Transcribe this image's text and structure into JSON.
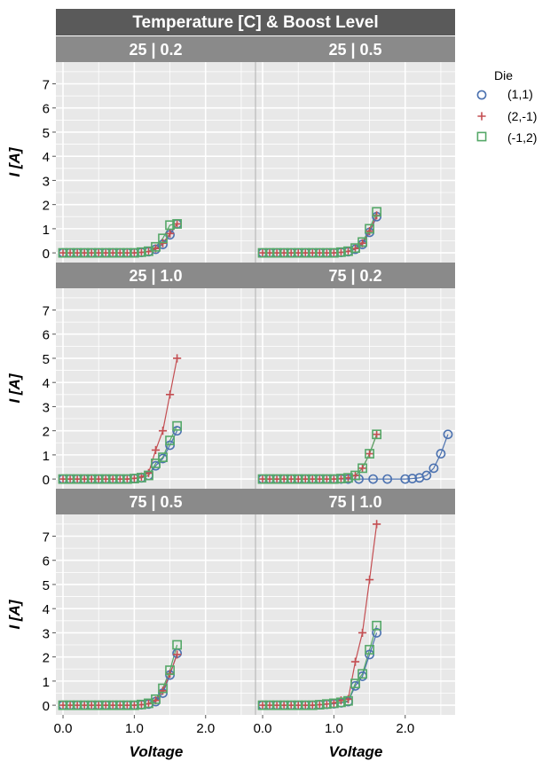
{
  "chart_data": {
    "type": "line",
    "title": "Temperature [C] & Boost Level",
    "xlabel": "Voltage",
    "ylabel": "I [A]",
    "xlim": [
      -0.1,
      2.7
    ],
    "ylim": [
      -0.4,
      7.9
    ],
    "x_ticks": [
      0.0,
      1.0,
      2.0
    ],
    "x_tick_labels": [
      "0.0",
      "1.0",
      "2.0"
    ],
    "y_ticks": [
      0,
      1,
      2,
      3,
      4,
      5,
      6,
      7
    ],
    "y_tick_labels": [
      "0",
      "1",
      "2",
      "3",
      "4",
      "5",
      "6",
      "7"
    ],
    "grid": true,
    "legend": {
      "title": "Die",
      "position": "right",
      "entries": [
        {
          "label": "(1,1)",
          "marker": "circle",
          "color": "#4c72b0"
        },
        {
          "label": "(2,-1)",
          "marker": "plus",
          "color": "#c44e52"
        },
        {
          "label": "(-1,2)",
          "marker": "square",
          "color": "#55a868"
        }
      ]
    },
    "panels": [
      {
        "label": "25 | 0.2",
        "series": [
          {
            "name": "(1,1)",
            "x": [
              0.0,
              0.1,
              0.2,
              0.3,
              0.4,
              0.5,
              0.6,
              0.7,
              0.8,
              0.9,
              1.0,
              1.1,
              1.2,
              1.3,
              1.4,
              1.5,
              1.6
            ],
            "y": [
              0,
              0,
              0,
              0,
              0,
              0,
              0,
              0,
              0,
              0,
              0,
              0.02,
              0.05,
              0.15,
              0.35,
              0.75,
              1.2
            ]
          },
          {
            "name": "(2,-1)",
            "x": [
              0.0,
              0.1,
              0.2,
              0.3,
              0.4,
              0.5,
              0.6,
              0.7,
              0.8,
              0.9,
              1.0,
              1.1,
              1.2,
              1.3,
              1.4,
              1.5,
              1.6
            ],
            "y": [
              0,
              0,
              0,
              0,
              0,
              0,
              0,
              0,
              0,
              0,
              0,
              0.02,
              0.05,
              0.18,
              0.4,
              0.8,
              1.2
            ]
          },
          {
            "name": "(-1,2)",
            "x": [
              0.0,
              0.1,
              0.2,
              0.3,
              0.4,
              0.5,
              0.6,
              0.7,
              0.8,
              0.9,
              1.0,
              1.1,
              1.2,
              1.3,
              1.4,
              1.5,
              1.6
            ],
            "y": [
              0,
              0,
              0,
              0,
              0,
              0,
              0,
              0,
              0,
              0,
              0,
              0.03,
              0.07,
              0.25,
              0.6,
              1.15,
              1.2
            ]
          }
        ]
      },
      {
        "label": "25 | 0.5",
        "series": [
          {
            "name": "(1,1)",
            "x": [
              0.0,
              0.1,
              0.2,
              0.3,
              0.4,
              0.5,
              0.6,
              0.7,
              0.8,
              0.9,
              1.0,
              1.1,
              1.2,
              1.3,
              1.4,
              1.5,
              1.6
            ],
            "y": [
              0,
              0,
              0,
              0,
              0,
              0,
              0,
              0,
              0,
              0,
              0,
              0.02,
              0.05,
              0.15,
              0.35,
              0.85,
              1.5
            ]
          },
          {
            "name": "(2,-1)",
            "x": [
              0.0,
              0.1,
              0.2,
              0.3,
              0.4,
              0.5,
              0.6,
              0.7,
              0.8,
              0.9,
              1.0,
              1.1,
              1.2,
              1.3,
              1.4,
              1.5,
              1.6
            ],
            "y": [
              0,
              0,
              0,
              0,
              0,
              0,
              0,
              0,
              0,
              0,
              0,
              0.02,
              0.06,
              0.18,
              0.4,
              0.9,
              1.55
            ]
          },
          {
            "name": "(-1,2)",
            "x": [
              0.0,
              0.1,
              0.2,
              0.3,
              0.4,
              0.5,
              0.6,
              0.7,
              0.8,
              0.9,
              1.0,
              1.1,
              1.2,
              1.3,
              1.4,
              1.5,
              1.6
            ],
            "y": [
              0,
              0,
              0,
              0,
              0,
              0,
              0,
              0,
              0,
              0,
              0,
              0.03,
              0.07,
              0.2,
              0.45,
              1.0,
              1.7
            ]
          }
        ]
      },
      {
        "label": "25 | 1.0",
        "series": [
          {
            "name": "(1,1)",
            "x": [
              0.0,
              0.1,
              0.2,
              0.3,
              0.4,
              0.5,
              0.6,
              0.7,
              0.8,
              0.9,
              1.0,
              1.1,
              1.2,
              1.3,
              1.4,
              1.5,
              1.6
            ],
            "y": [
              0,
              0,
              0,
              0,
              0,
              0,
              0,
              0,
              0,
              0,
              0.02,
              0.05,
              0.15,
              0.55,
              0.85,
              1.4,
              2.0
            ]
          },
          {
            "name": "(2,-1)",
            "x": [
              0.0,
              0.1,
              0.2,
              0.3,
              0.4,
              0.5,
              0.6,
              0.7,
              0.8,
              0.9,
              1.0,
              1.1,
              1.2,
              1.3,
              1.4,
              1.5,
              1.6
            ],
            "y": [
              0,
              0,
              0,
              0,
              0,
              0,
              0,
              0,
              0,
              0,
              0.03,
              0.1,
              0.25,
              1.2,
              2.0,
              3.5,
              5.0
            ]
          },
          {
            "name": "(-1,2)",
            "x": [
              0.0,
              0.1,
              0.2,
              0.3,
              0.4,
              0.5,
              0.6,
              0.7,
              0.8,
              0.9,
              1.0,
              1.1,
              1.2,
              1.3,
              1.4,
              1.5,
              1.6
            ],
            "y": [
              0,
              0,
              0,
              0,
              0,
              0,
              0,
              0,
              0,
              0,
              0.02,
              0.06,
              0.15,
              0.65,
              0.9,
              1.6,
              2.2
            ]
          }
        ]
      },
      {
        "label": "75 | 0.2",
        "series": [
          {
            "name": "(1,1)",
            "x": [
              0.0,
              0.1,
              0.2,
              0.3,
              0.4,
              0.5,
              0.6,
              0.7,
              0.8,
              0.9,
              1.0,
              1.1,
              1.2,
              1.35,
              1.55,
              1.75,
              2.0,
              2.1,
              2.2,
              2.3,
              2.4,
              2.5,
              2.6
            ],
            "y": [
              0,
              0,
              0,
              0,
              0,
              0,
              0,
              0,
              0,
              0,
              0,
              0,
              0,
              0,
              0,
              0,
              0,
              0.02,
              0.05,
              0.15,
              0.45,
              1.05,
              1.85
            ]
          },
          {
            "name": "(2,-1)",
            "x": [
              0.0,
              0.1,
              0.2,
              0.3,
              0.4,
              0.5,
              0.6,
              0.7,
              0.8,
              0.9,
              1.0,
              1.1,
              1.2,
              1.3,
              1.4,
              1.5,
              1.6
            ],
            "y": [
              0,
              0,
              0,
              0,
              0,
              0,
              0,
              0,
              0,
              0,
              0,
              0.02,
              0.05,
              0.15,
              0.45,
              1.05,
              1.85
            ]
          },
          {
            "name": "(-1,2)",
            "x": [
              0.0,
              0.1,
              0.2,
              0.3,
              0.4,
              0.5,
              0.6,
              0.7,
              0.8,
              0.9,
              1.0,
              1.1,
              1.2,
              1.3,
              1.4,
              1.5,
              1.6
            ],
            "y": [
              0,
              0,
              0,
              0,
              0,
              0,
              0,
              0,
              0,
              0,
              0,
              0.02,
              0.05,
              0.15,
              0.45,
              1.05,
              1.85
            ]
          }
        ]
      },
      {
        "label": "75 | 0.5",
        "series": [
          {
            "name": "(1,1)",
            "x": [
              0.0,
              0.1,
              0.2,
              0.3,
              0.4,
              0.5,
              0.6,
              0.7,
              0.8,
              0.9,
              1.0,
              1.1,
              1.2,
              1.3,
              1.4,
              1.5,
              1.6
            ],
            "y": [
              0,
              0,
              0,
              0,
              0,
              0,
              0,
              0,
              0,
              0,
              0,
              0.02,
              0.05,
              0.15,
              0.5,
              1.25,
              2.15
            ]
          },
          {
            "name": "(2,-1)",
            "x": [
              0.0,
              0.1,
              0.2,
              0.3,
              0.4,
              0.5,
              0.6,
              0.7,
              0.8,
              0.9,
              1.0,
              1.1,
              1.2,
              1.3,
              1.4,
              1.5,
              1.6
            ],
            "y": [
              0,
              0,
              0,
              0,
              0,
              0,
              0,
              0,
              0,
              0,
              0,
              0.02,
              0.06,
              0.2,
              0.6,
              1.3,
              2.1
            ]
          },
          {
            "name": "(-1,2)",
            "x": [
              0.0,
              0.1,
              0.2,
              0.3,
              0.4,
              0.5,
              0.6,
              0.7,
              0.8,
              0.9,
              1.0,
              1.1,
              1.2,
              1.3,
              1.4,
              1.5,
              1.6
            ],
            "y": [
              0,
              0,
              0,
              0,
              0,
              0,
              0,
              0,
              0,
              0,
              0,
              0.03,
              0.08,
              0.25,
              0.7,
              1.45,
              2.5
            ]
          }
        ]
      },
      {
        "label": "75 | 1.0",
        "series": [
          {
            "name": "(1,1)",
            "x": [
              0.0,
              0.1,
              0.2,
              0.3,
              0.4,
              0.5,
              0.6,
              0.7,
              0.8,
              0.9,
              1.0,
              1.1,
              1.2,
              1.3,
              1.4,
              1.5,
              1.6
            ],
            "y": [
              0,
              0,
              0,
              0,
              0,
              0,
              0,
              0,
              0.02,
              0.04,
              0.06,
              0.1,
              0.15,
              0.8,
              1.2,
              2.1,
              3.0
            ]
          },
          {
            "name": "(2,-1)",
            "x": [
              0.0,
              0.1,
              0.2,
              0.3,
              0.4,
              0.5,
              0.6,
              0.7,
              0.8,
              0.9,
              1.0,
              1.1,
              1.2,
              1.3,
              1.4,
              1.5,
              1.6
            ],
            "y": [
              0,
              0,
              0,
              0,
              0,
              0,
              0,
              0,
              0.02,
              0.05,
              0.1,
              0.2,
              0.25,
              1.8,
              3.0,
              5.2,
              7.5
            ]
          },
          {
            "name": "(-1,2)",
            "x": [
              0.0,
              0.1,
              0.2,
              0.3,
              0.4,
              0.5,
              0.6,
              0.7,
              0.8,
              0.9,
              1.0,
              1.1,
              1.2,
              1.3,
              1.4,
              1.5,
              1.6
            ],
            "y": [
              0,
              0,
              0,
              0,
              0,
              0,
              0,
              0,
              0.02,
              0.05,
              0.08,
              0.12,
              0.18,
              0.9,
              1.3,
              2.3,
              3.3
            ]
          }
        ]
      }
    ]
  }
}
